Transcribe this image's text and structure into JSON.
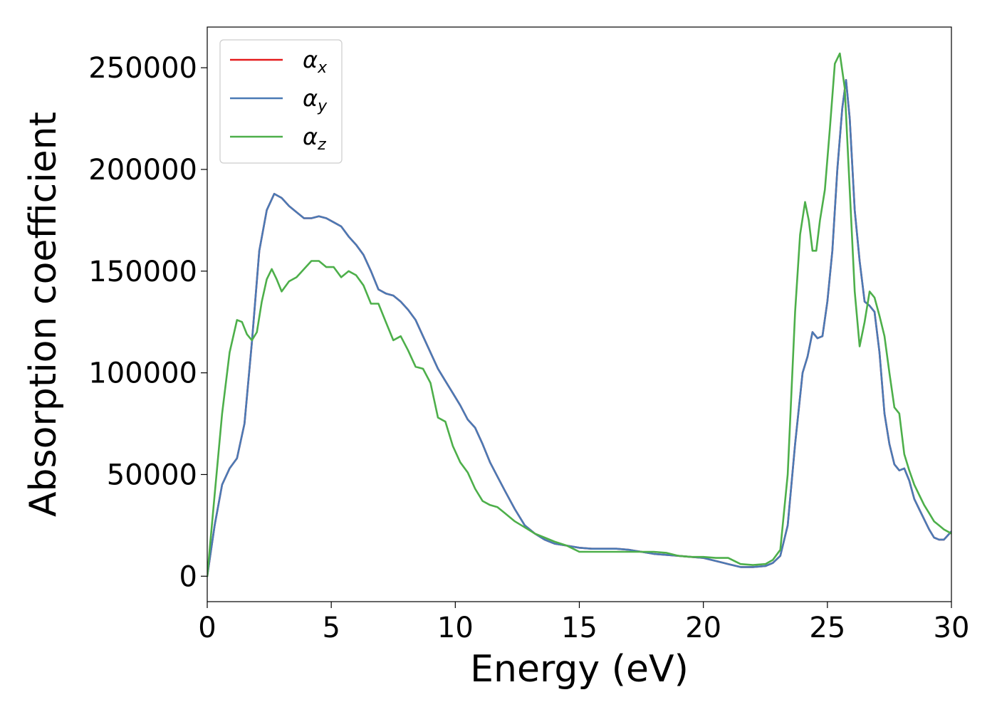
{
  "chart_data": {
    "type": "line",
    "xlabel": "Energy (eV)",
    "ylabel": "Absorption coefficient",
    "xlim": [
      0,
      30
    ],
    "ylim": [
      -12500,
      270000
    ],
    "xticks": [
      0,
      5,
      10,
      15,
      20,
      25,
      30
    ],
    "xtick_labels": [
      "0",
      "5",
      "10",
      "15",
      "20",
      "25",
      "30"
    ],
    "yticks": [
      0,
      50000,
      100000,
      150000,
      200000,
      250000
    ],
    "ytick_labels": [
      "0",
      "50000",
      "100000",
      "150000",
      "200000",
      "250000"
    ],
    "grid": false,
    "legend_position": "top-left",
    "series": [
      {
        "name": "α_x",
        "symbol": "α",
        "subscript": "x",
        "color": "#e41a1c",
        "x": [
          0,
          0.3,
          0.6,
          0.9,
          1.2,
          1.5,
          1.8,
          2.1,
          2.4,
          2.7,
          3.0,
          3.3,
          3.6,
          3.9,
          4.2,
          4.5,
          4.8,
          5.1,
          5.4,
          5.7,
          6.0,
          6.3,
          6.6,
          6.9,
          7.2,
          7.5,
          7.8,
          8.1,
          8.4,
          8.7,
          9.0,
          9.3,
          9.6,
          9.9,
          10.2,
          10.5,
          10.8,
          11.1,
          11.4,
          11.7,
          12.0,
          12.4,
          12.8,
          13.2,
          13.6,
          14.0,
          14.5,
          15.0,
          15.5,
          16.0,
          16.5,
          17.0,
          17.5,
          18.0,
          18.5,
          19.0,
          19.5,
          20.0,
          20.5,
          21.0,
          21.5,
          22.0,
          22.5,
          22.8,
          23.1,
          23.4,
          23.7,
          24.0,
          24.2,
          24.4,
          24.6,
          24.8,
          25.0,
          25.2,
          25.4,
          25.6,
          25.75,
          25.9,
          26.1,
          26.3,
          26.5,
          26.7,
          26.9,
          27.1,
          27.3,
          27.5,
          27.7,
          27.9,
          28.1,
          28.3,
          28.5,
          28.7,
          28.9,
          29.1,
          29.3,
          29.5,
          29.7,
          30.0
        ],
        "values": [
          0,
          25000,
          45000,
          53000,
          58000,
          75000,
          115000,
          160000,
          180000,
          188000,
          186000,
          182000,
          179000,
          176000,
          176000,
          177000,
          176000,
          174000,
          172000,
          167000,
          163000,
          158000,
          150000,
          141000,
          139000,
          138000,
          135000,
          131000,
          126000,
          118000,
          110000,
          102000,
          96000,
          90000,
          84000,
          77000,
          73000,
          65000,
          56000,
          49000,
          42000,
          33000,
          25000,
          21000,
          18000,
          16000,
          15000,
          14000,
          13500,
          13500,
          13500,
          13000,
          12000,
          11000,
          10500,
          10000,
          9500,
          9000,
          7500,
          6000,
          4500,
          4500,
          5000,
          6500,
          10000,
          25000,
          65000,
          100000,
          108000,
          120000,
          117000,
          118000,
          135000,
          160000,
          200000,
          230000,
          244000,
          225000,
          180000,
          155000,
          135000,
          133000,
          130000,
          110000,
          80000,
          65000,
          55000,
          52000,
          53000,
          47000,
          38000,
          33000,
          28000,
          23000,
          19000,
          18000,
          18000,
          22000
        ]
      },
      {
        "name": "α_y",
        "symbol": "α",
        "subscript": "y",
        "color": "#4a7ab5",
        "x": [
          0,
          0.3,
          0.6,
          0.9,
          1.2,
          1.5,
          1.8,
          2.1,
          2.4,
          2.7,
          3.0,
          3.3,
          3.6,
          3.9,
          4.2,
          4.5,
          4.8,
          5.1,
          5.4,
          5.7,
          6.0,
          6.3,
          6.6,
          6.9,
          7.2,
          7.5,
          7.8,
          8.1,
          8.4,
          8.7,
          9.0,
          9.3,
          9.6,
          9.9,
          10.2,
          10.5,
          10.8,
          11.1,
          11.4,
          11.7,
          12.0,
          12.4,
          12.8,
          13.2,
          13.6,
          14.0,
          14.5,
          15.0,
          15.5,
          16.0,
          16.5,
          17.0,
          17.5,
          18.0,
          18.5,
          19.0,
          19.5,
          20.0,
          20.5,
          21.0,
          21.5,
          22.0,
          22.5,
          22.8,
          23.1,
          23.4,
          23.7,
          24.0,
          24.2,
          24.4,
          24.6,
          24.8,
          25.0,
          25.2,
          25.4,
          25.6,
          25.75,
          25.9,
          26.1,
          26.3,
          26.5,
          26.7,
          26.9,
          27.1,
          27.3,
          27.5,
          27.7,
          27.9,
          28.1,
          28.3,
          28.5,
          28.7,
          28.9,
          29.1,
          29.3,
          29.5,
          29.7,
          30.0
        ],
        "values": [
          0,
          25000,
          45000,
          53000,
          58000,
          75000,
          115000,
          160000,
          180000,
          188000,
          186000,
          182000,
          179000,
          176000,
          176000,
          177000,
          176000,
          174000,
          172000,
          167000,
          163000,
          158000,
          150000,
          141000,
          139000,
          138000,
          135000,
          131000,
          126000,
          118000,
          110000,
          102000,
          96000,
          90000,
          84000,
          77000,
          73000,
          65000,
          56000,
          49000,
          42000,
          33000,
          25000,
          21000,
          18000,
          16000,
          15000,
          14000,
          13500,
          13500,
          13500,
          13000,
          12000,
          11000,
          10500,
          10000,
          9500,
          9000,
          7500,
          6000,
          4500,
          4500,
          5000,
          6500,
          10000,
          25000,
          65000,
          100000,
          108000,
          120000,
          117000,
          118000,
          135000,
          160000,
          200000,
          230000,
          244000,
          225000,
          180000,
          155000,
          135000,
          133000,
          130000,
          110000,
          80000,
          65000,
          55000,
          52000,
          53000,
          47000,
          38000,
          33000,
          28000,
          23000,
          19000,
          18000,
          18000,
          22000
        ]
      },
      {
        "name": "α_z",
        "symbol": "α",
        "subscript": "z",
        "color": "#4daf4a",
        "x": [
          0,
          0.3,
          0.6,
          0.9,
          1.2,
          1.4,
          1.6,
          1.8,
          2.0,
          2.2,
          2.4,
          2.6,
          2.8,
          3.0,
          3.3,
          3.6,
          3.9,
          4.2,
          4.5,
          4.8,
          5.1,
          5.4,
          5.7,
          6.0,
          6.3,
          6.6,
          6.9,
          7.2,
          7.5,
          7.8,
          8.1,
          8.4,
          8.7,
          9.0,
          9.3,
          9.6,
          9.9,
          10.2,
          10.5,
          10.8,
          11.1,
          11.4,
          11.7,
          12.0,
          12.4,
          12.8,
          13.2,
          13.6,
          14.0,
          14.5,
          15.0,
          15.5,
          16.0,
          16.5,
          17.0,
          17.5,
          18.0,
          18.5,
          19.0,
          19.5,
          20.0,
          20.5,
          21.0,
          21.5,
          22.0,
          22.5,
          22.8,
          23.1,
          23.4,
          23.7,
          23.9,
          24.1,
          24.25,
          24.4,
          24.55,
          24.7,
          24.9,
          25.1,
          25.3,
          25.5,
          25.7,
          25.9,
          26.1,
          26.3,
          26.5,
          26.7,
          26.9,
          27.1,
          27.3,
          27.5,
          27.7,
          27.9,
          28.1,
          28.3,
          28.5,
          28.7,
          28.9,
          29.1,
          29.3,
          29.5,
          29.7,
          30.0
        ],
        "values": [
          0,
          40000,
          80000,
          110000,
          126000,
          125000,
          119000,
          116000,
          120000,
          135000,
          146000,
          151000,
          146000,
          140000,
          145000,
          147000,
          151000,
          155000,
          155000,
          152000,
          152000,
          147000,
          150000,
          148000,
          143000,
          134000,
          134000,
          125000,
          116000,
          118000,
          111000,
          103000,
          102000,
          95000,
          78000,
          76000,
          64000,
          56000,
          51000,
          43000,
          37000,
          35000,
          34000,
          31000,
          27000,
          24000,
          21000,
          19000,
          17000,
          15000,
          12000,
          12000,
          12000,
          12000,
          12000,
          12000,
          12000,
          11500,
          10000,
          9500,
          9500,
          9000,
          9000,
          6000,
          5500,
          6000,
          8000,
          13000,
          50000,
          130000,
          168000,
          184000,
          175000,
          160000,
          160000,
          175000,
          190000,
          220000,
          252000,
          257000,
          240000,
          190000,
          140000,
          113000,
          125000,
          140000,
          137000,
          128000,
          118000,
          100000,
          83000,
          80000,
          60000,
          52000,
          45000,
          40000,
          35000,
          31000,
          27000,
          25000,
          23000,
          21000
        ]
      }
    ]
  }
}
